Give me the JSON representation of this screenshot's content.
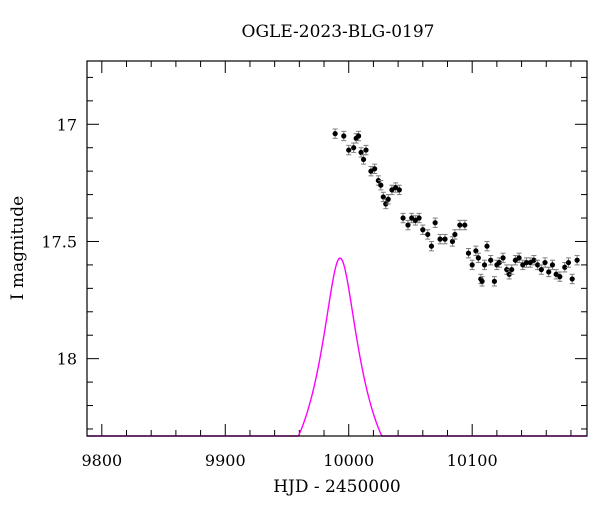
{
  "chart_data": {
    "type": "scatter",
    "title": "OGLE-2023-BLG-0197",
    "xlabel": "HJD - 2450000",
    "ylabel": "I magnitude",
    "xlim": [
      9788,
      10193
    ],
    "ylim": [
      18.33,
      16.73
    ],
    "y_inverted": true,
    "x_ticks": [
      9800,
      9900,
      10000,
      10100
    ],
    "y_ticks": [
      17,
      17.5,
      18
    ],
    "x_tick_labels": [
      "9800",
      "9900",
      "10000",
      "10100"
    ],
    "y_tick_labels": [
      "17",
      "17.5",
      "18"
    ],
    "model_color": "#ff00ff",
    "point_color": "#000000",
    "errorbar_color": "#7f7f7f",
    "model": {
      "name": "",
      "t0": 9993,
      "u0": 0.29,
      "tE": 40,
      "I_source": 18.58,
      "f_s": 0.6
    },
    "series": [
      {
        "name": "",
        "points": [
          [
            9989,
            17.04,
            0.02
          ],
          [
            9996,
            17.05,
            0.02
          ],
          [
            10000,
            17.11,
            0.02
          ],
          [
            10004,
            17.1,
            0.02
          ],
          [
            10006,
            17.06,
            0.02
          ],
          [
            10008,
            17.05,
            0.02
          ],
          [
            10010,
            17.12,
            0.02
          ],
          [
            10012,
            17.15,
            0.02
          ],
          [
            10014,
            17.11,
            0.02
          ],
          [
            10018,
            17.2,
            0.02
          ],
          [
            10021,
            17.19,
            0.02
          ],
          [
            10024,
            17.24,
            0.02
          ],
          [
            10026,
            17.26,
            0.02
          ],
          [
            10028,
            17.31,
            0.02
          ],
          [
            10030,
            17.34,
            0.02
          ],
          [
            10032,
            17.32,
            0.02
          ],
          [
            10035,
            17.28,
            0.02
          ],
          [
            10038,
            17.27,
            0.02
          ],
          [
            10041,
            17.28,
            0.02
          ],
          [
            10044,
            17.4,
            0.02
          ],
          [
            10048,
            17.43,
            0.02
          ],
          [
            10051,
            17.4,
            0.02
          ],
          [
            10054,
            17.41,
            0.02
          ],
          [
            10057,
            17.4,
            0.02
          ],
          [
            10060,
            17.45,
            0.02
          ],
          [
            10064,
            17.47,
            0.02
          ],
          [
            10067,
            17.52,
            0.02
          ],
          [
            10070,
            17.42,
            0.02
          ],
          [
            10074,
            17.49,
            0.02
          ],
          [
            10078,
            17.49,
            0.02
          ],
          [
            10084,
            17.5,
            0.02
          ],
          [
            10086,
            17.47,
            0.02
          ],
          [
            10090,
            17.43,
            0.02
          ],
          [
            10094,
            17.43,
            0.02
          ],
          [
            10097,
            17.55,
            0.02
          ],
          [
            10100,
            17.6,
            0.02
          ],
          [
            10103,
            17.54,
            0.02
          ],
          [
            10105,
            17.57,
            0.02
          ],
          [
            10107,
            17.66,
            0.02
          ],
          [
            10108,
            17.67,
            0.02
          ],
          [
            10110,
            17.6,
            0.02
          ],
          [
            10112,
            17.52,
            0.02
          ],
          [
            10115,
            17.58,
            0.02
          ],
          [
            10118,
            17.67,
            0.02
          ],
          [
            10120,
            17.6,
            0.02
          ],
          [
            10122,
            17.59,
            0.02
          ],
          [
            10125,
            17.57,
            0.02
          ],
          [
            10128,
            17.62,
            0.02
          ],
          [
            10130,
            17.64,
            0.02
          ],
          [
            10132,
            17.62,
            0.02
          ],
          [
            10135,
            17.58,
            0.02
          ],
          [
            10138,
            17.57,
            0.02
          ],
          [
            10141,
            17.6,
            0.02
          ],
          [
            10144,
            17.59,
            0.02
          ],
          [
            10147,
            17.59,
            0.02
          ],
          [
            10150,
            17.58,
            0.02
          ],
          [
            10153,
            17.6,
            0.02
          ],
          [
            10156,
            17.62,
            0.02
          ],
          [
            10159,
            17.59,
            0.02
          ],
          [
            10162,
            17.63,
            0.02
          ],
          [
            10165,
            17.6,
            0.02
          ],
          [
            10168,
            17.64,
            0.02
          ],
          [
            10171,
            17.65,
            0.02
          ],
          [
            10175,
            17.61,
            0.02
          ],
          [
            10178,
            17.59,
            0.02
          ],
          [
            10181,
            17.66,
            0.02
          ],
          [
            10185,
            17.58,
            0.02
          ]
        ]
      }
    ]
  }
}
